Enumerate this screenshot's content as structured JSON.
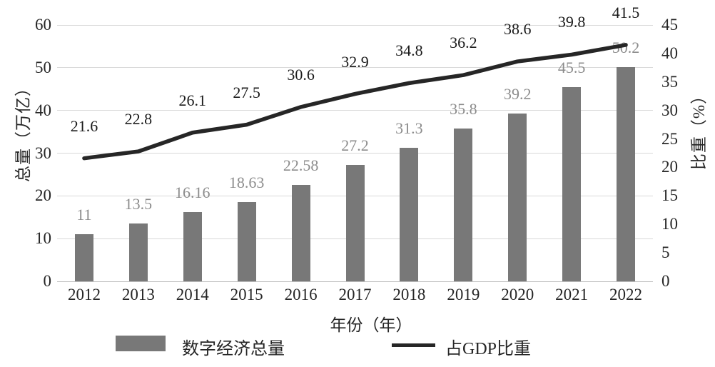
{
  "chart_data": {
    "type": "combo",
    "categories": [
      "2012",
      "2013",
      "2014",
      "2015",
      "2016",
      "2017",
      "2018",
      "2019",
      "2020",
      "2021",
      "2022"
    ],
    "series": [
      {
        "name": "数字经济总量",
        "type": "bar",
        "axis": "left",
        "values": [
          11,
          13.5,
          16.16,
          18.63,
          22.58,
          27.2,
          31.3,
          35.8,
          39.2,
          45.5,
          50.2
        ]
      },
      {
        "name": "占GDP比重",
        "type": "line",
        "axis": "right",
        "values": [
          21.6,
          22.8,
          26.1,
          27.5,
          30.6,
          32.9,
          34.8,
          36.2,
          38.6,
          39.8,
          41.5
        ]
      }
    ],
    "left_axis": {
      "title": "总量（万亿）",
      "min": 0,
      "max": 60,
      "step": 10
    },
    "right_axis": {
      "title": "比重（%）",
      "min": 0,
      "max": 45,
      "step": 5
    },
    "x_axis": {
      "title": "年份（年）"
    },
    "legend": {
      "position": "bottom",
      "entries": [
        "数字经济总量",
        "占GDP比重"
      ]
    },
    "grid": true
  },
  "colors": {
    "bar": "#787878",
    "line": "#262626",
    "bar_label": "#8c8c8c",
    "line_label": "#1a1a1a",
    "tick": "#262626",
    "gridline": "#d9d9d9",
    "axis_line": "#bfbfbf",
    "background": "#ffffff"
  }
}
